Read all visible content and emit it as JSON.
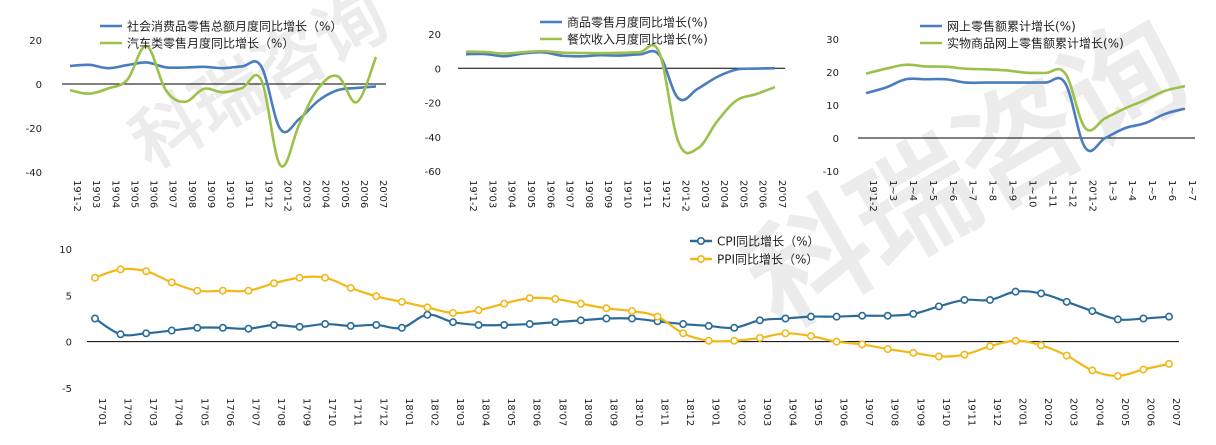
{
  "watermark": "科瑞咨询",
  "colors": {
    "blue": "#4a7dbf",
    "green": "#9bc14a",
    "cpi": "#2a6b9a",
    "ppi": "#f3b818"
  },
  "chart_data": [
    {
      "type": "line",
      "x": [
        "19'1-2",
        "19'03",
        "19'04",
        "19'05",
        "19'06",
        "19'07",
        "19'08",
        "19'09",
        "19'10",
        "19'11",
        "19'12",
        "20'1-2",
        "20'03",
        "20'04",
        "20'05",
        "20'06",
        "20'07"
      ],
      "series": [
        {
          "name": "社会消费品零售总额月度同比增长（%）",
          "values": [
            8.2,
            8.7,
            7.2,
            8.6,
            9.8,
            7.6,
            7.5,
            7.8,
            7.2,
            8.0,
            8.0,
            -20.5,
            -15.8,
            -7.5,
            -2.8,
            -1.8,
            -1.1
          ]
        },
        {
          "name": "汽车类零售月度同比增长（%）",
          "values": [
            -2.8,
            -4.4,
            -2.0,
            2.0,
            17.2,
            -2.6,
            -8.1,
            -2.2,
            -3.8,
            -1.8,
            1.8,
            -37.0,
            -18.1,
            -1.8,
            3.5,
            -8.2,
            12.3
          ]
        }
      ],
      "ylim": [
        -40,
        20
      ],
      "yticks": [
        "20",
        "0",
        "-20",
        "-40"
      ]
    },
    {
      "type": "line",
      "x": [
        "19'1-2",
        "19'03",
        "19'04",
        "19'05",
        "19'06",
        "19'07",
        "19'08",
        "19'09",
        "19'10",
        "19'11",
        "19'12",
        "20'1-2",
        "20'03",
        "20'04",
        "20'05",
        "20'06",
        "20'07"
      ],
      "series": [
        {
          "name": "商品零售月度同比增长(%)",
          "values": [
            8.2,
            8.3,
            7.0,
            8.7,
            9.3,
            7.3,
            7.0,
            7.6,
            7.4,
            8.1,
            7.9,
            -17.6,
            -12.0,
            -5.1,
            -0.8,
            -0.2,
            0.0
          ]
        },
        {
          "name": "餐饮收入月度同比增长(%)",
          "values": [
            9.7,
            9.5,
            8.6,
            9.4,
            10.0,
            9.1,
            8.9,
            8.8,
            9.0,
            9.4,
            9.3,
            -43.1,
            -46.8,
            -31.1,
            -18.9,
            -15.2,
            -11.0
          ]
        }
      ],
      "ylim": [
        -60,
        20
      ],
      "yticks": [
        "20",
        "0",
        "-20",
        "-40",
        "-60"
      ]
    },
    {
      "type": "line",
      "x": [
        "19'1-2",
        "1~3",
        "1~4",
        "1~5",
        "1~6",
        "1~7",
        "1~8",
        "1~9",
        "1~10",
        "1~11",
        "1~12",
        "20'1-2",
        "1~3",
        "1~4",
        "1~5",
        "1~6",
        "1~7"
      ],
      "series": [
        {
          "name": "网上零售额累计增长(%)",
          "values": [
            13.6,
            15.3,
            17.8,
            17.8,
            17.8,
            16.8,
            16.8,
            16.8,
            16.8,
            16.8,
            16.5,
            -3.0,
            0.0,
            3.0,
            4.5,
            7.3,
            8.9
          ]
        },
        {
          "name": "实物商品网上零售额累计增长(%)",
          "values": [
            19.5,
            21.0,
            22.2,
            21.7,
            21.6,
            21.0,
            20.8,
            20.5,
            19.8,
            19.7,
            19.5,
            3.0,
            6.0,
            9.0,
            11.5,
            14.3,
            15.7
          ]
        }
      ],
      "ylim": [
        -10,
        30
      ],
      "yticks": [
        "30",
        "20",
        "10",
        "0",
        "-10"
      ]
    },
    {
      "type": "line",
      "x": [
        "17'01",
        "17'02",
        "17'03",
        "17'04",
        "17'05",
        "17'06",
        "17'07",
        "17'08",
        "17'09",
        "17'10",
        "17'11",
        "17'12",
        "18'01",
        "18'02",
        "18'03",
        "18'04",
        "18'05",
        "18'06",
        "18'07",
        "18'08",
        "18'09",
        "18'10",
        "18'11",
        "18'12",
        "19'01",
        "19'02",
        "19'03",
        "19'04",
        "19'05",
        "19'06",
        "19'07",
        "19'08",
        "19'09",
        "19'10",
        "19'11",
        "19'12",
        "20'01",
        "20'02",
        "20'03",
        "20'04",
        "20'05",
        "20'06",
        "20'07"
      ],
      "series": [
        {
          "name": "CPI同比增长（%）",
          "values": [
            2.5,
            0.8,
            0.9,
            1.2,
            1.5,
            1.5,
            1.4,
            1.8,
            1.6,
            1.9,
            1.7,
            1.8,
            1.5,
            2.9,
            2.1,
            1.8,
            1.8,
            1.9,
            2.1,
            2.3,
            2.5,
            2.5,
            2.2,
            1.9,
            1.7,
            1.5,
            2.3,
            2.5,
            2.7,
            2.7,
            2.8,
            2.8,
            3.0,
            3.8,
            4.5,
            4.5,
            5.4,
            5.2,
            4.3,
            3.3,
            2.4,
            2.5,
            2.7
          ]
        },
        {
          "name": "PPI同比增长（%）",
          "values": [
            6.9,
            7.8,
            7.6,
            6.4,
            5.5,
            5.5,
            5.5,
            6.3,
            6.9,
            6.9,
            5.8,
            4.9,
            4.3,
            3.7,
            3.1,
            3.4,
            4.1,
            4.7,
            4.6,
            4.1,
            3.6,
            3.3,
            2.7,
            0.9,
            0.1,
            0.1,
            0.4,
            0.9,
            0.6,
            0.0,
            -0.3,
            -0.8,
            -1.2,
            -1.6,
            -1.4,
            -0.5,
            0.1,
            -0.4,
            -1.5,
            -3.1,
            -3.7,
            -3.0,
            -2.4
          ]
        }
      ],
      "ylim": [
        -5,
        10
      ],
      "yticks": [
        "10",
        "5",
        "0",
        "-5"
      ]
    }
  ]
}
